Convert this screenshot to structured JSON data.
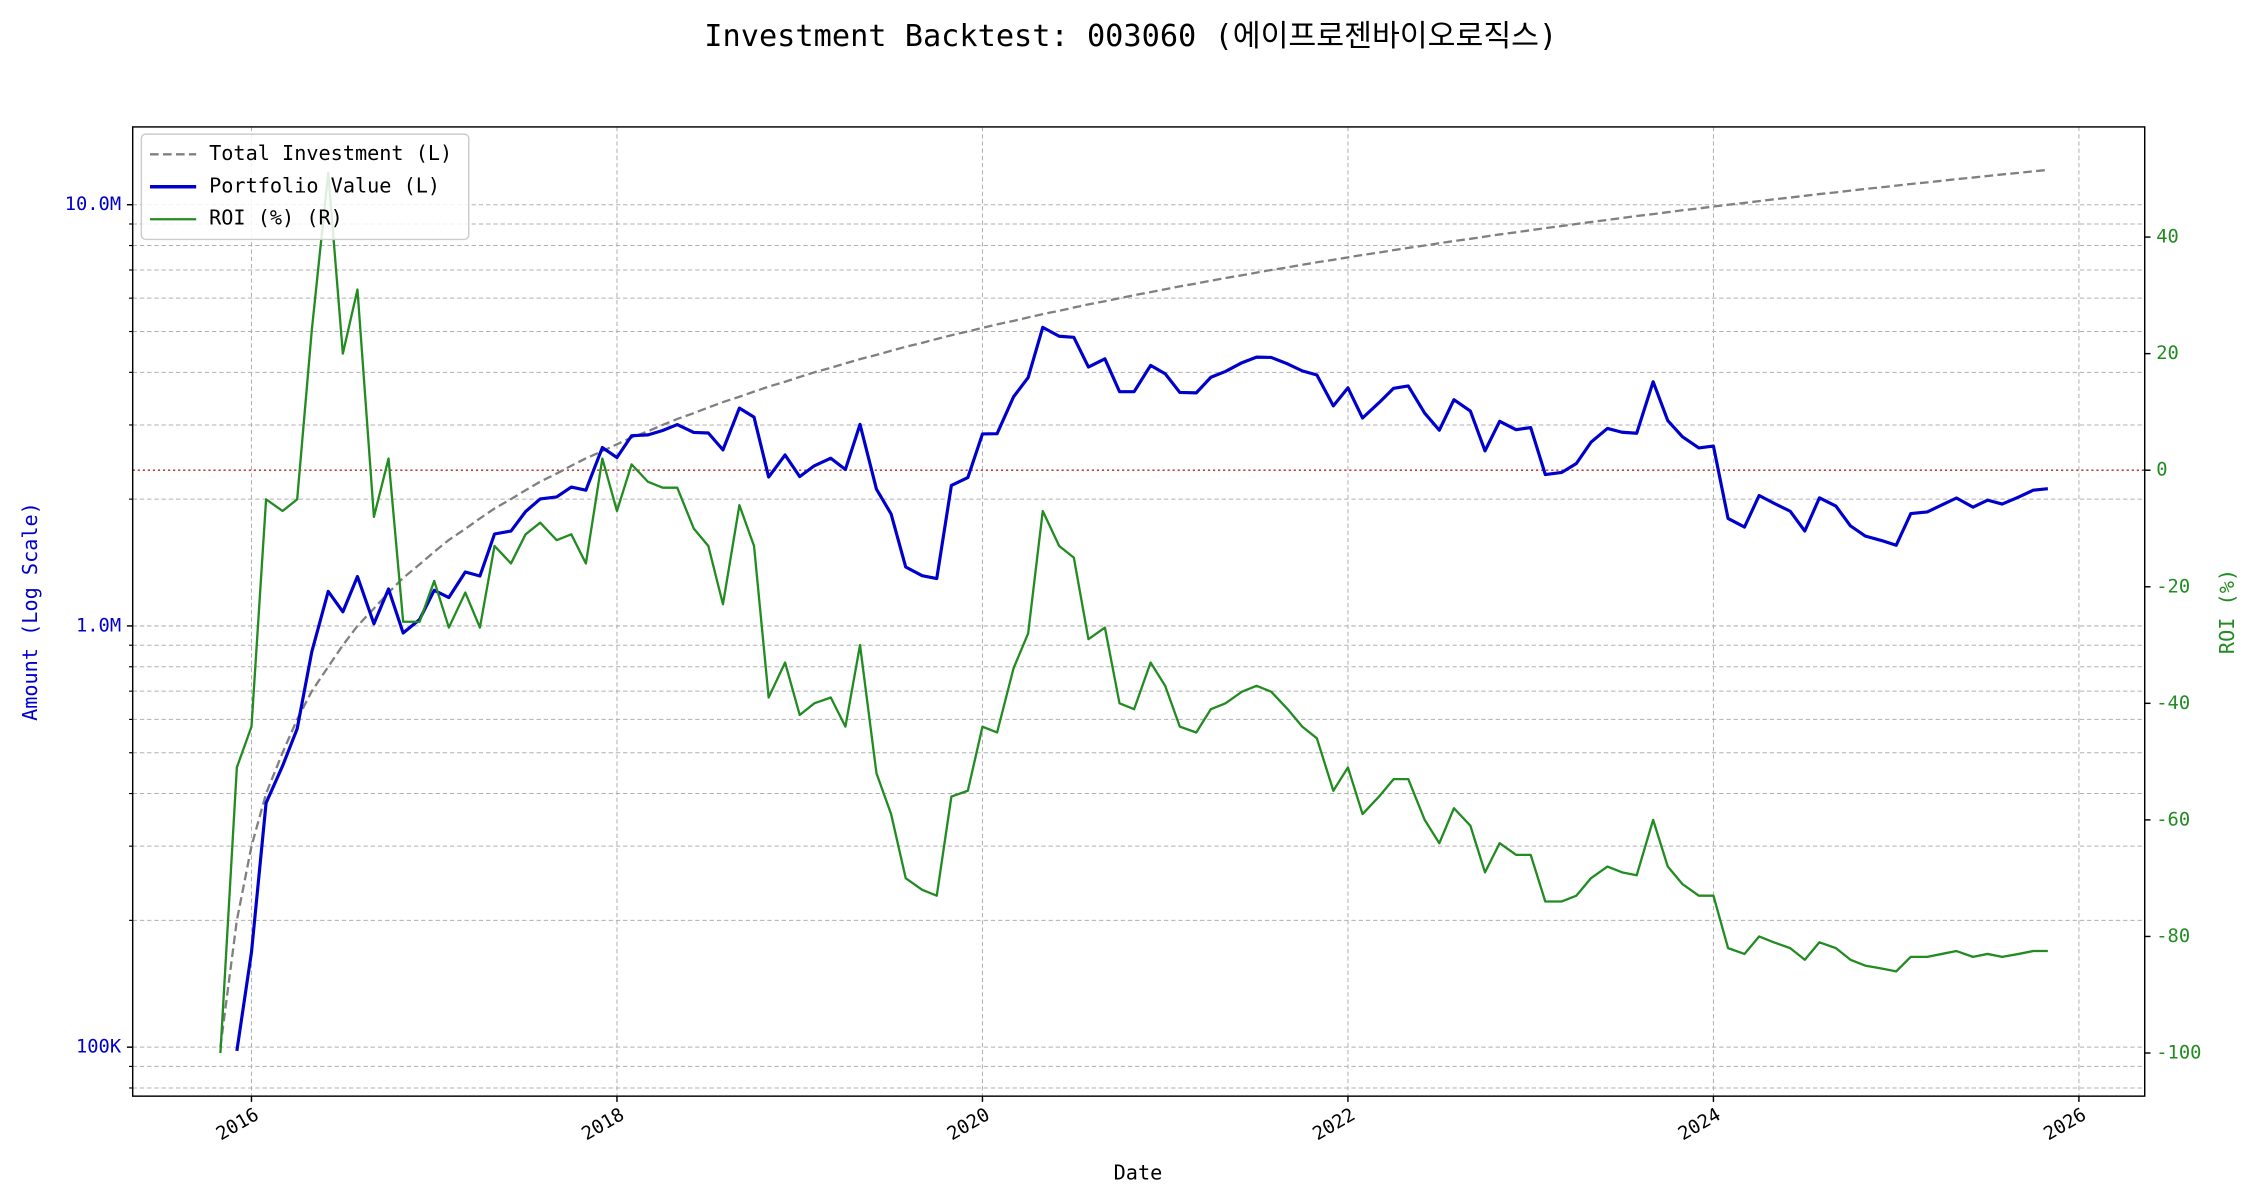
{
  "chart_data": {
    "type": "line",
    "title": "Investment Backtest: 003060 (에이프로젠바이오로직스)",
    "xlabel": "Date",
    "ylabel": "Amount (Log Scale)",
    "y2label": "ROI (%)",
    "yscale": "log",
    "grid": true,
    "minor_grid": true,
    "legend": "upper left",
    "xlim": [
      2015.35,
      2026.36
    ],
    "xticks": [
      2016,
      2018,
      2020,
      2022,
      2024,
      2026
    ],
    "ylim": [
      76500,
      15300000
    ],
    "yticks": [
      {
        "value": 100000,
        "label": "100K"
      },
      {
        "value": 1000000,
        "label": "1.0M"
      },
      {
        "value": 10000000,
        "label": "10.0M"
      }
    ],
    "y2lim": [
      -107.4,
      58.9
    ],
    "y2ticks": [
      -100,
      -80,
      -60,
      -40,
      -20,
      0,
      20,
      40
    ],
    "reference_line": {
      "value": 0,
      "axis": "y2",
      "color": "#b22222"
    },
    "x": [
      2015.83,
      2015.92,
      2016.0,
      2016.08,
      2016.17,
      2016.25,
      2016.33,
      2016.42,
      2016.5,
      2016.58,
      2016.67,
      2016.75,
      2016.83,
      2016.92,
      2017.0,
      2017.08,
      2017.17,
      2017.25,
      2017.33,
      2017.42,
      2017.5,
      2017.58,
      2017.67,
      2017.75,
      2017.83,
      2017.92,
      2018.0,
      2018.08,
      2018.17,
      2018.25,
      2018.33,
      2018.42,
      2018.5,
      2018.58,
      2018.67,
      2018.75,
      2018.83,
      2018.92,
      2019.0,
      2019.08,
      2019.17,
      2019.25,
      2019.33,
      2019.42,
      2019.5,
      2019.58,
      2019.67,
      2019.75,
      2019.83,
      2019.92,
      2020.0,
      2020.08,
      2020.17,
      2020.25,
      2020.33,
      2020.42,
      2020.5,
      2020.58,
      2020.67,
      2020.75,
      2020.83,
      2020.92,
      2021.0,
      2021.08,
      2021.17,
      2021.25,
      2021.33,
      2021.42,
      2021.5,
      2021.58,
      2021.67,
      2021.75,
      2021.83,
      2021.92,
      2022.0,
      2022.08,
      2022.17,
      2022.25,
      2022.33,
      2022.42,
      2022.5,
      2022.58,
      2022.67,
      2022.75,
      2022.83,
      2022.92,
      2023.0,
      2023.08,
      2023.17,
      2023.25,
      2023.33,
      2023.42,
      2023.5,
      2023.58,
      2023.67,
      2023.75,
      2023.83,
      2023.92,
      2024.0,
      2024.08,
      2024.17,
      2024.25,
      2024.33,
      2024.42,
      2024.5,
      2024.58,
      2024.67,
      2024.75,
      2024.83,
      2024.92,
      2025.0,
      2025.08,
      2025.17,
      2025.25,
      2025.33,
      2025.42,
      2025.5,
      2025.58,
      2025.67,
      2025.75,
      2025.83
    ],
    "series": [
      {
        "name": "Total Investment (L)",
        "color": "#808080",
        "dash": "dashed",
        "axis": "y",
        "values": [
          100000,
          200000,
          300000,
          400000,
          500000,
          600000,
          700000,
          800000,
          900000,
          1000000,
          1100000,
          1200000,
          1300000,
          1400000,
          1500000,
          1600000,
          1700000,
          1800000,
          1900000,
          2000000,
          2100000,
          2200000,
          2300000,
          2400000,
          2500000,
          2600000,
          2700000,
          2800000,
          2900000,
          3000000,
          3100000,
          3200000,
          3300000,
          3400000,
          3500000,
          3600000,
          3700000,
          3800000,
          3900000,
          4000000,
          4100000,
          4200000,
          4300000,
          4400000,
          4500000,
          4600000,
          4700000,
          4800000,
          4900000,
          5000000,
          5100000,
          5200000,
          5300000,
          5400000,
          5500000,
          5600000,
          5700000,
          5800000,
          5900000,
          6000000,
          6100000,
          6200000,
          6300000,
          6400000,
          6500000,
          6600000,
          6700000,
          6800000,
          6900000,
          7000000,
          7100000,
          7200000,
          7300000,
          7400000,
          7500000,
          7600000,
          7700000,
          7800000,
          7900000,
          8000000,
          8100000,
          8200000,
          8300000,
          8400000,
          8500000,
          8600000,
          8700000,
          8800000,
          8900000,
          9000000,
          9100000,
          9200000,
          9300000,
          9400000,
          9500000,
          9600000,
          9700000,
          9800000,
          9900000,
          10000000,
          10100000,
          10200000,
          10300000,
          10400000,
          10500000,
          10600000,
          10700000,
          10800000,
          10900000,
          11000000,
          11100000,
          11200000,
          11300000,
          11400000,
          11500000,
          11600000,
          11700000,
          11800000,
          11900000,
          12000000,
          12100000
        ]
      },
      {
        "name": "Portfolio Value (L)",
        "color": "#0000cd",
        "dash": "solid",
        "axis": "y",
        "values": [
          null,
          98000,
          168000,
          380000,
          465000,
          570000,
          868000,
          1208000,
          1080000,
          1310000,
          1012000,
          1224000,
          962000,
          1036000,
          1215000,
          1168000,
          1343000,
          1314000,
          1653000,
          1680000,
          1869000,
          2002000,
          2024000,
          2136000,
          2100000,
          2652000,
          2511000,
          2828000,
          2842000,
          2910000,
          3007000,
          2880000,
          2871000,
          2618000,
          3290000,
          3132000,
          2257000,
          2546000,
          2262000,
          2400000,
          2501000,
          2352000,
          3010000,
          2112000,
          1845000,
          1380000,
          1316000,
          1296000,
          2156000,
          2250000,
          2856000,
          2860000,
          3498000,
          3888000,
          5115000,
          4872000,
          4845000,
          4118000,
          4307000,
          3600000,
          3599000,
          4154000,
          3969000,
          3584000,
          3575000,
          3894000,
          4020000,
          4216000,
          4347000,
          4340000,
          4189000,
          4032000,
          3942000,
          3330000,
          3675000,
          3116000,
          3388000,
          3666000,
          3713000,
          3200000,
          2916000,
          3444000,
          3237000,
          2604000,
          3060000,
          2924000,
          2958000,
          2288000,
          2314000,
          2430000,
          2730000,
          2944000,
          2883000,
          2867000,
          3800000,
          3072000,
          2813000,
          2646000,
          2673000,
          1800000,
          1717000,
          2040000,
          1957000,
          1872000,
          1680000,
          2014000,
          1926000,
          1728000,
          1635000,
          1595000,
          1554000,
          1848000,
          1864500,
          1938000,
          2012500,
          1914000,
          1989000,
          1947000,
          2023000,
          2100000,
          2117500
        ]
      },
      {
        "name": "ROI (%) (R)",
        "color": "#228b22",
        "dash": "solid",
        "axis": "y2",
        "values": [
          -100,
          -51,
          -44,
          -5,
          -7,
          -5,
          24,
          51,
          20,
          31,
          -8,
          2,
          -26,
          -26,
          -19,
          -27,
          -21,
          -27,
          -13,
          -16,
          -11,
          -9,
          -12,
          -11,
          -16,
          2,
          -7,
          1,
          -2,
          -3,
          -3,
          -10,
          -13,
          -23,
          -6,
          -13,
          -39,
          -33,
          -42,
          -40,
          -39,
          -44,
          -30,
          -52,
          -59,
          -70,
          -72,
          -73,
          -56,
          -55,
          -44,
          -45,
          -34,
          -28,
          -7,
          -13,
          -15,
          -29,
          -27,
          -40,
          -41,
          -33,
          -37,
          -44,
          -45,
          -41,
          -40,
          -38,
          -37,
          -38,
          -41,
          -44,
          -46,
          -55,
          -51,
          -59,
          -56,
          -53,
          -53,
          -60,
          -64,
          -58,
          -61,
          -69,
          -64,
          -66,
          -66,
          -74,
          -74,
          -73,
          -70,
          -68,
          -69,
          -69.5,
          -60,
          -68,
          -71,
          -73,
          -73,
          -82,
          -83,
          -80,
          -81,
          -82,
          -84,
          -81,
          -82,
          -84,
          -85,
          -85.5,
          -86,
          -83.5,
          -83.5,
          -83,
          -82.5,
          -83.5,
          -83,
          -83.5,
          -83,
          -82.5,
          -82.5
        ]
      }
    ]
  }
}
